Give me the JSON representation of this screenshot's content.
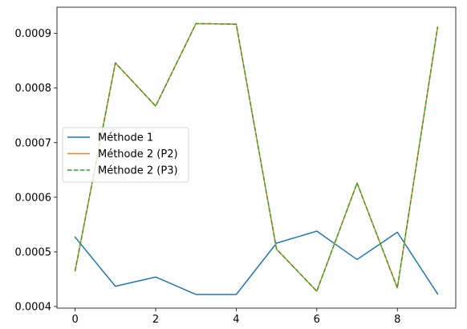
{
  "chart_data": {
    "type": "line",
    "title": "",
    "xlabel": "",
    "ylabel": "",
    "x": [
      0,
      1,
      2,
      3,
      4,
      5,
      6,
      7,
      8,
      9
    ],
    "xlim": [
      -0.45,
      9.45
    ],
    "ylim": [
      0.000397,
      0.000948
    ],
    "xticks": [
      0,
      2,
      4,
      6,
      8
    ],
    "xtick_labels": [
      "0",
      "2",
      "4",
      "6",
      "8"
    ],
    "yticks": [
      0.0004,
      0.0005,
      0.0006,
      0.0007,
      0.0008,
      0.0009
    ],
    "ytick_labels": [
      "0.0004",
      "0.0005",
      "0.0006",
      "0.0007",
      "0.0008",
      "0.0009"
    ],
    "grid": false,
    "legend_position": "center-left",
    "series": [
      {
        "name": "Méthode 1",
        "color": "#1f77b4",
        "dash": "solid",
        "values": [
          0.000527,
          0.000437,
          0.000454,
          0.000422,
          0.000422,
          0.000516,
          0.000538,
          0.000486,
          0.000536,
          0.000423
        ]
      },
      {
        "name": "Méthode 2 (P2)",
        "color": "#ff7f0e",
        "dash": "solid",
        "values": [
          0.000465,
          0.000846,
          0.000767,
          0.000918,
          0.000917,
          0.000505,
          0.000428,
          0.000626,
          0.000434,
          0.000912
        ]
      },
      {
        "name": "Méthode 2 (P3)",
        "color": "#2ca02c",
        "dash": "dashed",
        "values": [
          0.000465,
          0.000846,
          0.000767,
          0.000918,
          0.000917,
          0.000505,
          0.000428,
          0.000626,
          0.000434,
          0.000912
        ]
      }
    ]
  }
}
